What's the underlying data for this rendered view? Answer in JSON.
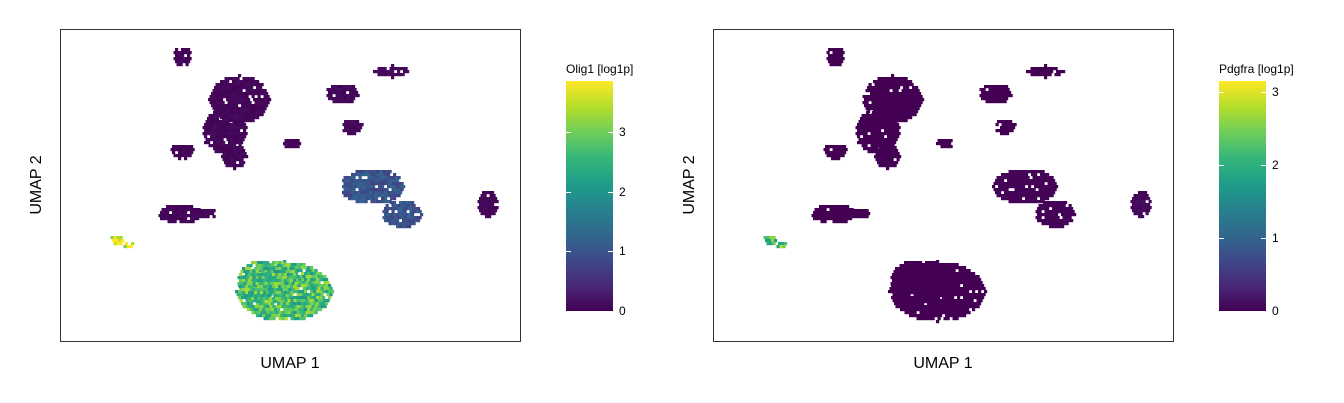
{
  "chart_data": [
    {
      "type": "heatmap",
      "subtype": "hexbin-umap",
      "xlabel": "UMAP 1",
      "ylabel": "UMAP 2",
      "colorbar_title": "Olig1 [log1p]",
      "colorbar_ticks": [
        0,
        1,
        2,
        3
      ],
      "color_range": [
        0,
        3.85
      ],
      "colormap": "viridis",
      "xticks_shown": false,
      "yticks_shown": false,
      "grid": false,
      "clusters": [
        {
          "region": "top-small",
          "value": 0.1
        },
        {
          "region": "top-left-large",
          "value": 0.12
        },
        {
          "region": "top-center",
          "value": 0.15
        },
        {
          "region": "top-right",
          "value": 0.1
        },
        {
          "region": "middle-right",
          "value": 1.0
        },
        {
          "region": "far-right",
          "value": 0.1
        },
        {
          "region": "middle-left",
          "value": 0.1
        },
        {
          "region": "left-small",
          "value": 3.7
        },
        {
          "region": "bottom-large",
          "value": 2.7
        }
      ]
    },
    {
      "type": "heatmap",
      "subtype": "hexbin-umap",
      "xlabel": "UMAP 1",
      "ylabel": "UMAP 2",
      "colorbar_title": "Pdgfra [log1p]",
      "colorbar_ticks": [
        0,
        1,
        2,
        3
      ],
      "color_range": [
        0,
        3.15
      ],
      "colormap": "viridis",
      "xticks_shown": false,
      "yticks_shown": false,
      "grid": false,
      "clusters": [
        {
          "region": "top-small",
          "value": 0.0
        },
        {
          "region": "top-left-large",
          "value": 0.0
        },
        {
          "region": "top-center",
          "value": 0.0
        },
        {
          "region": "top-right",
          "value": 0.0
        },
        {
          "region": "middle-right",
          "value": 0.05
        },
        {
          "region": "far-right",
          "value": 0.15
        },
        {
          "region": "middle-left",
          "value": 0.0
        },
        {
          "region": "left-small",
          "value": 2.3
        },
        {
          "region": "bottom-large",
          "value": 0.0
        }
      ]
    }
  ],
  "colors": {
    "viridis": [
      "#440154",
      "#482878",
      "#3e4989",
      "#31688e",
      "#26828e",
      "#1f9e89",
      "#35b779",
      "#6ece58",
      "#b5de2b",
      "#fde725"
    ],
    "frame": "#333333",
    "background": "#ffffff"
  }
}
